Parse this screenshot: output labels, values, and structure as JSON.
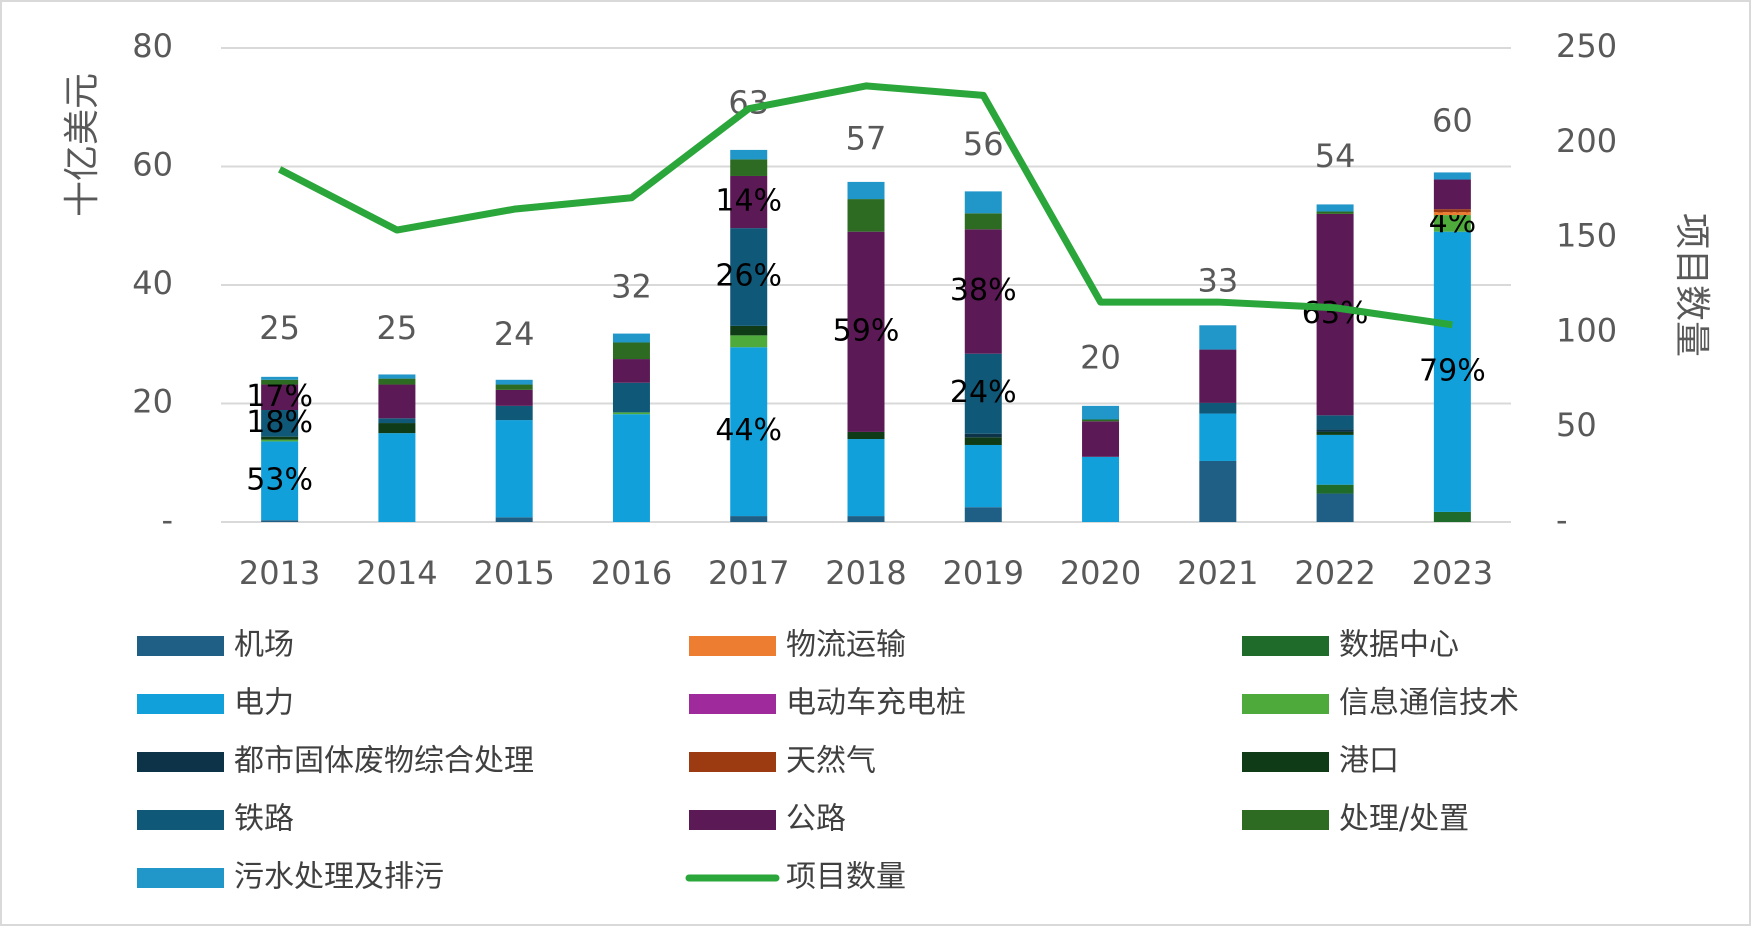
{
  "chart_data": {
    "type": "bar",
    "stacked": true,
    "y_label": "十亿美元",
    "y2_label": "项目数量",
    "categories": [
      "2013",
      "2014",
      "2015",
      "2016",
      "2017",
      "2018",
      "2019",
      "2020",
      "2021",
      "2022",
      "2023"
    ],
    "ylim": [
      0,
      80
    ],
    "yticks": [
      {
        "value": 0,
        "label": "-"
      },
      20,
      40,
      60,
      80
    ],
    "y2lim": [
      0,
      250
    ],
    "y2ticks": [
      {
        "value": 0,
        "label": "-"
      },
      50,
      100,
      150,
      200,
      250
    ],
    "grid": true,
    "totals": [
      25,
      25,
      24,
      32,
      63,
      57,
      56,
      20,
      33,
      54,
      60
    ],
    "series": [
      {
        "name": "机场",
        "color": "#1f5f86",
        "values": [
          0.3,
          0,
          0.8,
          0,
          1,
          1,
          2.5,
          0,
          10.3,
          4.8,
          0
        ]
      },
      {
        "name": "数据中心",
        "color": "#1e6b2a",
        "values": [
          0,
          0,
          0,
          0,
          0,
          0,
          0,
          0,
          0,
          1.5,
          1.7
        ]
      },
      {
        "name": "电力",
        "color": "#12a0da",
        "values": [
          13.3,
          15,
          16.4,
          18.2,
          28.5,
          13,
          10.5,
          11,
          8,
          8.4,
          47.3
        ],
        "share_labels": [
          "53%",
          null,
          null,
          null,
          "44%",
          null,
          null,
          null,
          null,
          null,
          "79%"
        ]
      },
      {
        "name": "信息通信技术",
        "color": "#4faa3c",
        "values": [
          0.3,
          0,
          0,
          0.3,
          2,
          0,
          0,
          0,
          0,
          0,
          2.8
        ],
        "share_labels": [
          null,
          null,
          null,
          null,
          null,
          null,
          null,
          null,
          null,
          null,
          "4%"
        ]
      },
      {
        "name": "港口",
        "color": "#0f3b17",
        "values": [
          0.5,
          1.7,
          0,
          0,
          1.6,
          1.2,
          1.3,
          0,
          0,
          0.5,
          0
        ]
      },
      {
        "name": "都市固体废物综合处理",
        "color": "#0d3349",
        "values": [
          0,
          0,
          0,
          0,
          0,
          0,
          0.6,
          0,
          0,
          0.4,
          0
        ]
      },
      {
        "name": "铁路",
        "color": "#0f5878",
        "values": [
          4.5,
          0.8,
          2.4,
          5,
          16.5,
          0,
          13.5,
          0,
          1.8,
          2.4,
          0
        ],
        "share_labels": [
          "18%",
          null,
          null,
          null,
          "26%",
          null,
          "24%",
          null,
          null,
          null,
          null
        ]
      },
      {
        "name": "物流运输",
        "color": "#ed7d31",
        "values": [
          0,
          0,
          0,
          0,
          0,
          0,
          0,
          0,
          0,
          0,
          0.5
        ]
      },
      {
        "name": "天然气",
        "color": "#9c3b12",
        "values": [
          0,
          0,
          0,
          0,
          0,
          0,
          0,
          0,
          0,
          0,
          0.5
        ]
      },
      {
        "name": "电动车充电桩",
        "color": "#9e2a9b",
        "values": [
          0,
          0,
          0,
          0,
          0,
          0,
          0,
          0,
          0,
          0,
          0
        ]
      },
      {
        "name": "公路",
        "color": "#5b1a55",
        "values": [
          4.3,
          5.7,
          2.7,
          4,
          8.8,
          33.8,
          21,
          6,
          9,
          34,
          5
        ],
        "share_labels": [
          "17%",
          null,
          null,
          null,
          "14%",
          "59%",
          "38%",
          null,
          null,
          "63%",
          null
        ]
      },
      {
        "name": "处理/处置",
        "color": "#2e6b22",
        "values": [
          0.8,
          1,
          0.9,
          2.8,
          2.8,
          5.5,
          2.7,
          0.3,
          0,
          0.4,
          0
        ]
      },
      {
        "name": "污水处理及排污",
        "color": "#2196c8",
        "values": [
          0.5,
          0.7,
          0.8,
          1.5,
          1.6,
          2.9,
          3.7,
          2.3,
          4.1,
          1.2,
          1.2
        ]
      },
      {
        "name": "项目数量",
        "type": "line",
        "axis": "y2",
        "color": "#2aa63a",
        "values": [
          186,
          154,
          165,
          171,
          218,
          230,
          225,
          116,
          116,
          113,
          104
        ]
      }
    ]
  }
}
